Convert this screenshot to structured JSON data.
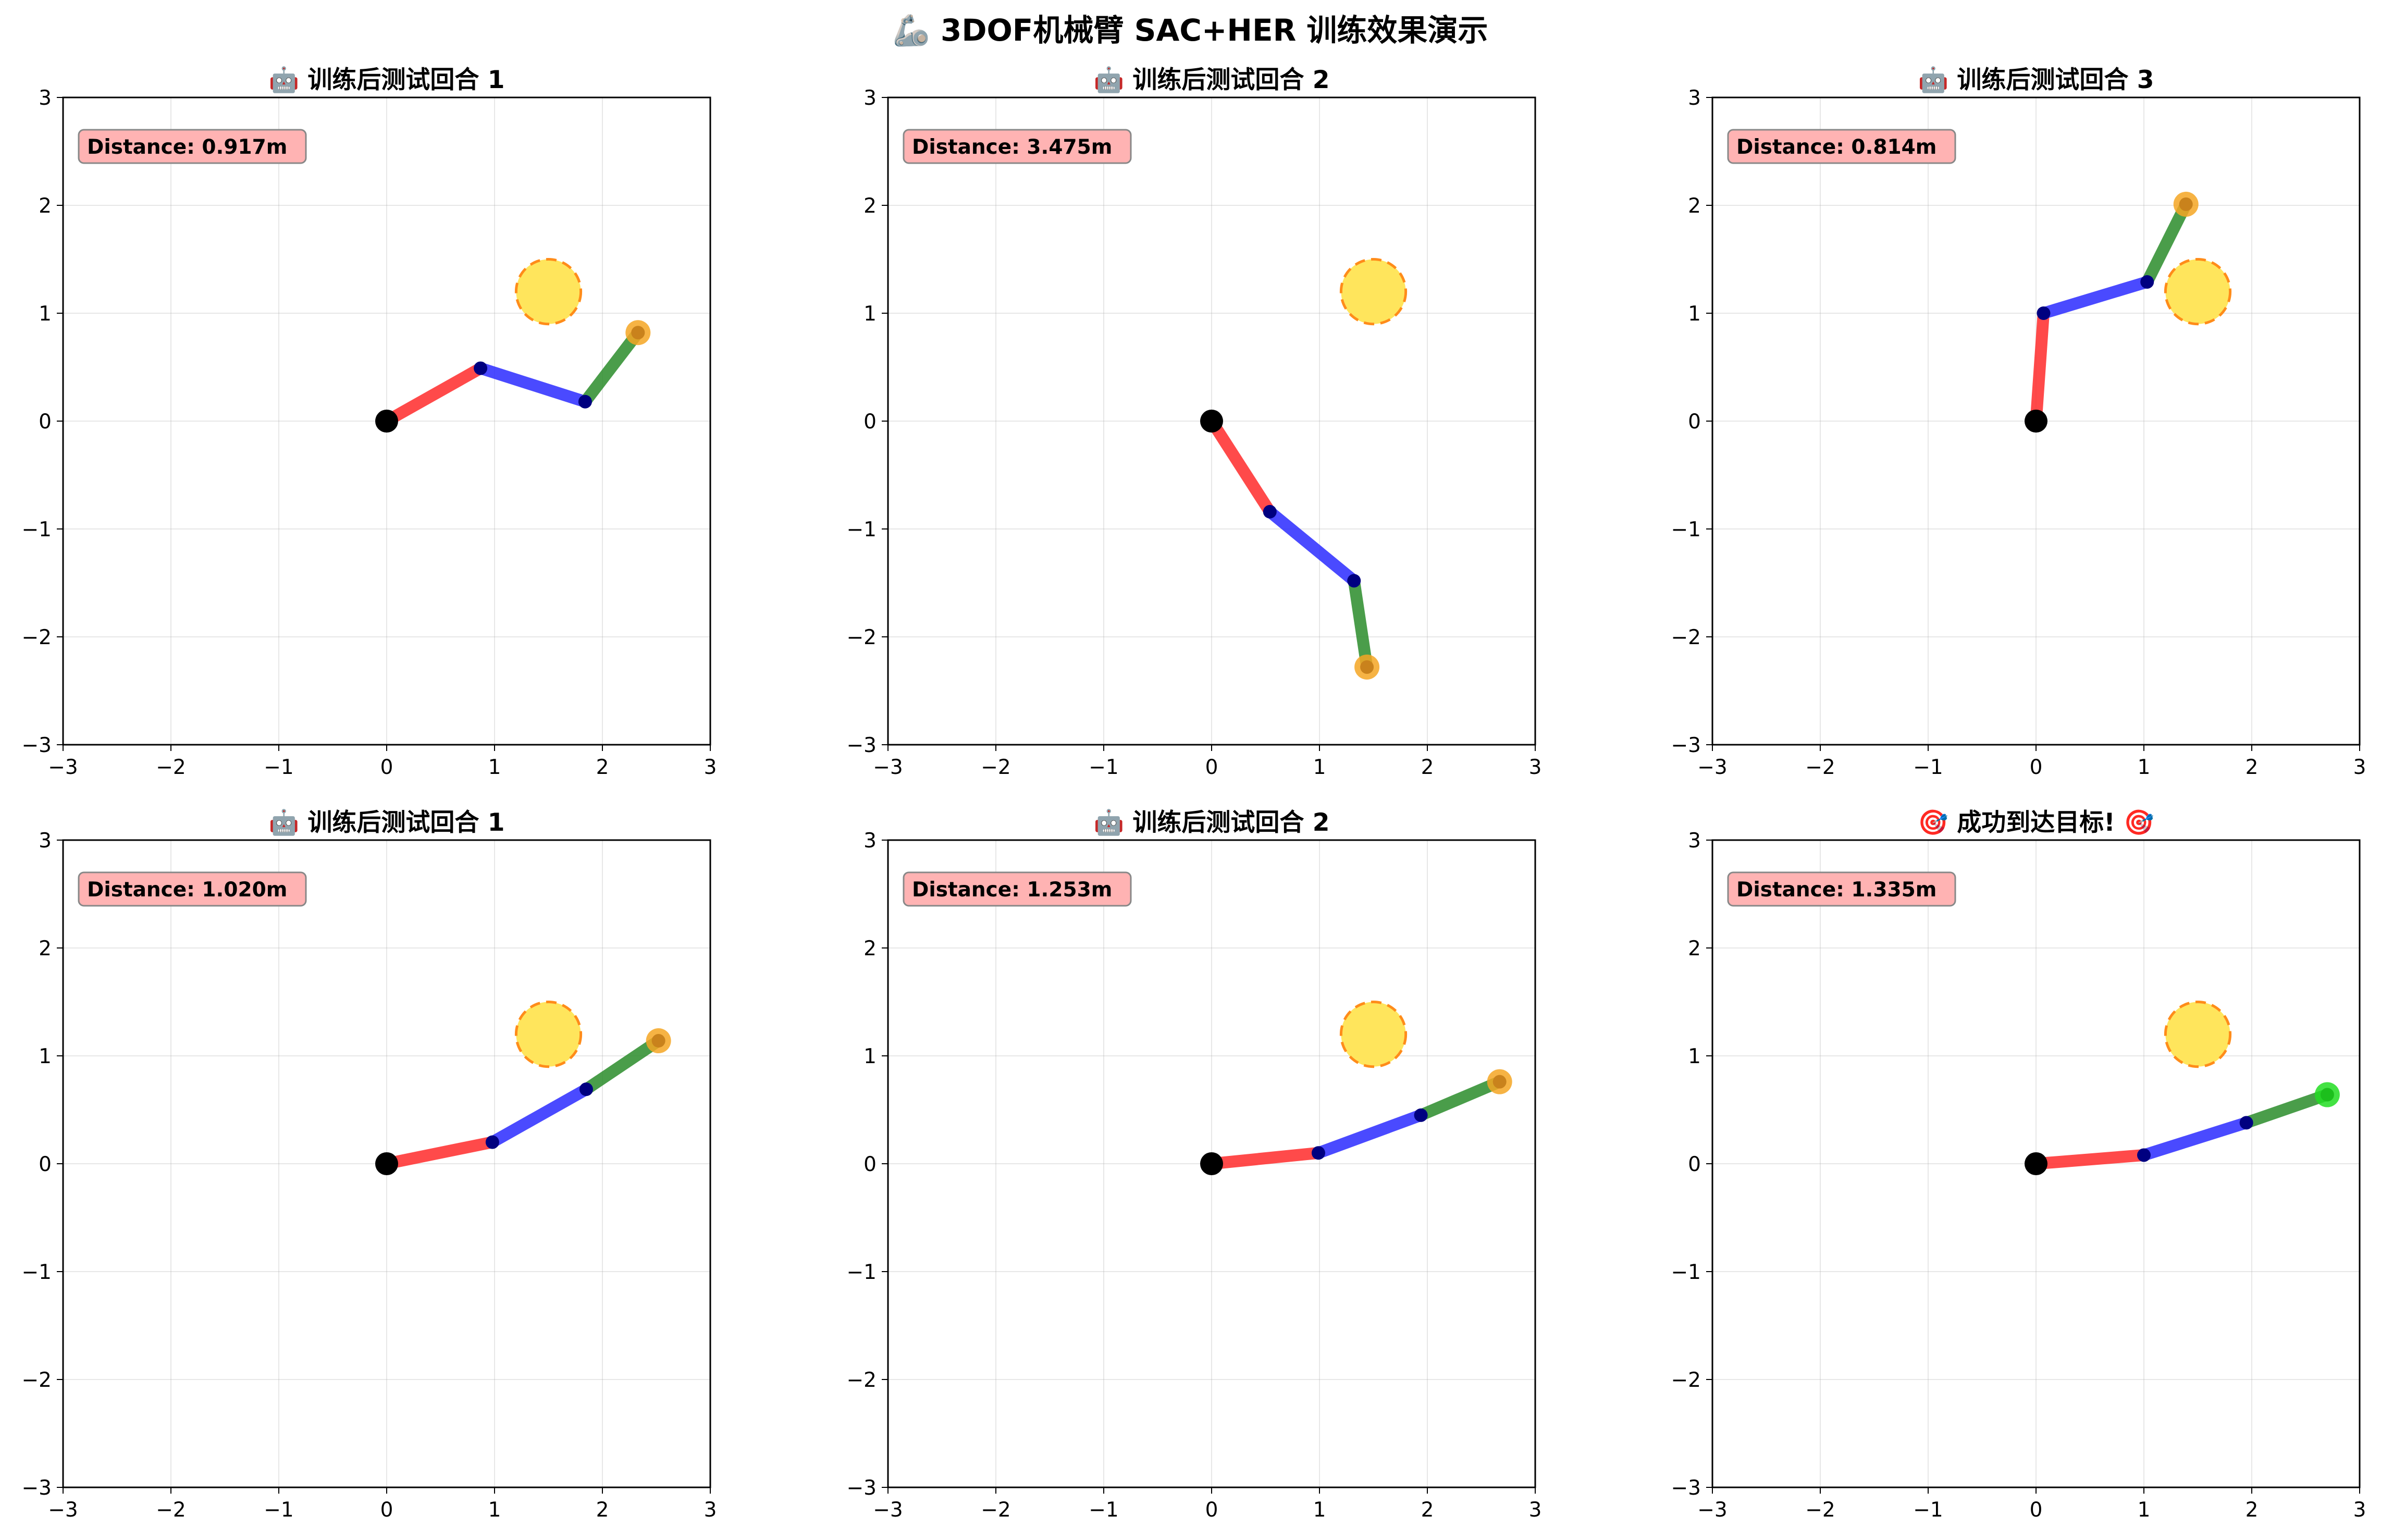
{
  "figure": {
    "title": "🦾 3DOF机械臂 SAC+HER 训练效果演示"
  },
  "chart_data": [
    {
      "type": "line",
      "title": "🤖 训练后测试回合 1",
      "xlim": [
        -3,
        3
      ],
      "ylim": [
        -3,
        3
      ],
      "xticks": [
        -3,
        -2,
        -1,
        0,
        1,
        2,
        3
      ],
      "yticks": [
        -3,
        -2,
        -1,
        0,
        1,
        2,
        3
      ],
      "grid": true,
      "target": {
        "x": 1.5,
        "y": 1.2,
        "r": 0.3
      },
      "joints": [
        [
          0,
          0
        ],
        [
          0.87,
          0.49
        ],
        [
          1.84,
          0.18
        ],
        [
          2.33,
          0.82
        ]
      ],
      "end_color": "#f5a623",
      "distance_label": "Distance: 0.917m"
    },
    {
      "type": "line",
      "title": "🤖 训练后测试回合 2",
      "xlim": [
        -3,
        3
      ],
      "ylim": [
        -3,
        3
      ],
      "xticks": [
        -3,
        -2,
        -1,
        0,
        1,
        2,
        3
      ],
      "yticks": [
        -3,
        -2,
        -1,
        0,
        1,
        2,
        3
      ],
      "grid": true,
      "target": {
        "x": 1.5,
        "y": 1.2,
        "r": 0.3
      },
      "joints": [
        [
          0,
          0
        ],
        [
          0.54,
          -0.84
        ],
        [
          1.32,
          -1.48
        ],
        [
          1.44,
          -2.28
        ]
      ],
      "end_color": "#f5a623",
      "distance_label": "Distance: 3.475m"
    },
    {
      "type": "line",
      "title": "🤖 训练后测试回合 3",
      "xlim": [
        -3,
        3
      ],
      "ylim": [
        -3,
        3
      ],
      "xticks": [
        -3,
        -2,
        -1,
        0,
        1,
        2,
        3
      ],
      "yticks": [
        -3,
        -2,
        -1,
        0,
        1,
        2,
        3
      ],
      "grid": true,
      "target": {
        "x": 1.5,
        "y": 1.2,
        "r": 0.3
      },
      "joints": [
        [
          0,
          0
        ],
        [
          0.07,
          1.0
        ],
        [
          1.03,
          1.29
        ],
        [
          1.39,
          2.01
        ]
      ],
      "end_color": "#f5a623",
      "distance_label": "Distance: 0.814m"
    },
    {
      "type": "line",
      "title": "🤖 训练后测试回合 1",
      "xlim": [
        -3,
        3
      ],
      "ylim": [
        -3,
        3
      ],
      "xticks": [
        -3,
        -2,
        -1,
        0,
        1,
        2,
        3
      ],
      "yticks": [
        -3,
        -2,
        -1,
        0,
        1,
        2,
        3
      ],
      "grid": true,
      "target": {
        "x": 1.5,
        "y": 1.2,
        "r": 0.3
      },
      "joints": [
        [
          0,
          0
        ],
        [
          0.98,
          0.2
        ],
        [
          1.85,
          0.69
        ],
        [
          2.52,
          1.14
        ]
      ],
      "end_color": "#f5a623",
      "distance_label": "Distance: 1.020m"
    },
    {
      "type": "line",
      "title": "🤖 训练后测试回合 2",
      "xlim": [
        -3,
        3
      ],
      "ylim": [
        -3,
        3
      ],
      "xticks": [
        -3,
        -2,
        -1,
        0,
        1,
        2,
        3
      ],
      "yticks": [
        -3,
        -2,
        -1,
        0,
        1,
        2,
        3
      ],
      "grid": true,
      "target": {
        "x": 1.5,
        "y": 1.2,
        "r": 0.3
      },
      "joints": [
        [
          0,
          0
        ],
        [
          0.99,
          0.1
        ],
        [
          1.94,
          0.45
        ],
        [
          2.67,
          0.76
        ]
      ],
      "end_color": "#f5a623",
      "distance_label": "Distance: 1.253m"
    },
    {
      "type": "line",
      "title": "🎯 成功到达目标! 🎯",
      "xlim": [
        -3,
        3
      ],
      "ylim": [
        -3,
        3
      ],
      "xticks": [
        -3,
        -2,
        -1,
        0,
        1,
        2,
        3
      ],
      "yticks": [
        -3,
        -2,
        -1,
        0,
        1,
        2,
        3
      ],
      "grid": true,
      "target": {
        "x": 1.5,
        "y": 1.2,
        "r": 0.3
      },
      "joints": [
        [
          0,
          0
        ],
        [
          1.0,
          0.08
        ],
        [
          1.95,
          0.38
        ],
        [
          2.7,
          0.64
        ]
      ],
      "end_color": "#22dd22",
      "distance_label": "Distance: 1.335m"
    }
  ]
}
